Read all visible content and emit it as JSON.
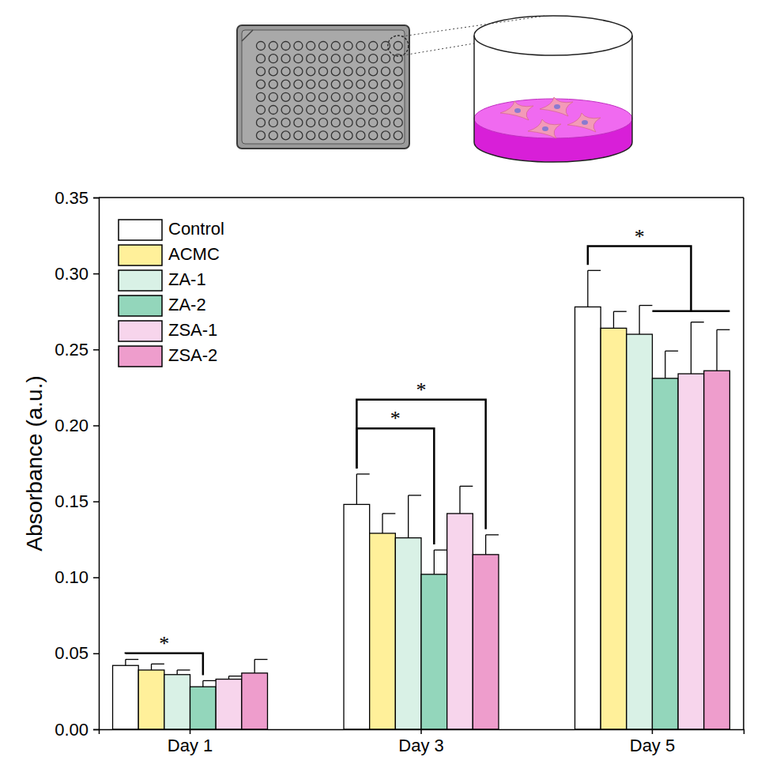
{
  "chart_data": {
    "type": "bar",
    "y_label": "Absorbance (a.u.)",
    "categories": [
      "Day 1",
      "Day 3",
      "Day 5"
    ],
    "series": [
      {
        "name": "Control",
        "color": "#ffffff",
        "values": [
          0.042,
          0.148,
          0.278
        ],
        "errors": [
          0.004,
          0.02,
          0.024
        ]
      },
      {
        "name": "ACMC",
        "color": "#fff09a",
        "values": [
          0.039,
          0.129,
          0.264
        ],
        "errors": [
          0.004,
          0.013,
          0.011
        ]
      },
      {
        "name": "ZA-1",
        "color": "#d9f1e6",
        "values": [
          0.036,
          0.126,
          0.26
        ],
        "errors": [
          0.003,
          0.028,
          0.019
        ]
      },
      {
        "name": "ZA-2",
        "color": "#93d6bb",
        "values": [
          0.028,
          0.102,
          0.231
        ],
        "errors": [
          0.004,
          0.016,
          0.018
        ]
      },
      {
        "name": "ZSA-1",
        "color": "#f7d5ec",
        "values": [
          0.033,
          0.142,
          0.234
        ],
        "errors": [
          0.002,
          0.018,
          0.034
        ]
      },
      {
        "name": "ZSA-2",
        "color": "#ee9dcc",
        "values": [
          0.037,
          0.115,
          0.236
        ],
        "errors": [
          0.009,
          0.013,
          0.027
        ]
      }
    ],
    "ylim": [
      0,
      0.35
    ],
    "yticks": [
      {
        "value": 0,
        "label": "0.00"
      },
      {
        "value": 0.05,
        "label": "0.05"
      },
      {
        "value": 0.1,
        "label": "0.10"
      },
      {
        "value": 0.15,
        "label": "0.15"
      },
      {
        "value": 0.2,
        "label": "0.20"
      },
      {
        "value": 0.25,
        "label": "0.25"
      },
      {
        "value": 0.3,
        "label": "0.30"
      },
      {
        "value": 0.35,
        "label": "0.35"
      }
    ],
    "legend": "top-left",
    "annotations": [
      {
        "text": "*",
        "category": "Day 1",
        "from": "Control",
        "to": [
          "ZA-2"
        ],
        "y": 0.05
      },
      {
        "text": "*",
        "category": "Day 3",
        "from": "Control",
        "to": [
          "ZA-2"
        ],
        "y": 0.198
      },
      {
        "text": "*",
        "category": "Day 3",
        "from": "Control",
        "to": [
          "ZSA-2"
        ],
        "y": 0.217
      },
      {
        "text": "*",
        "category": "Day 5",
        "from": "Control",
        "to": [
          "ZA-2",
          "ZSA-1",
          "ZSA-2"
        ],
        "y": 0.318
      }
    ]
  }
}
